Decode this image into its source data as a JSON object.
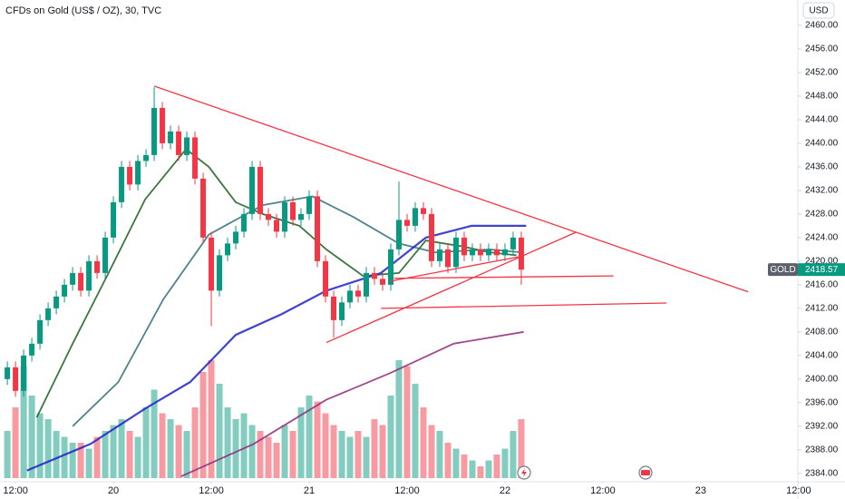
{
  "chart_data": {
    "type": "candlestick",
    "title": "CFDs on Gold (US$ / OZ), 30, TVC",
    "symbol": "GOLD",
    "currency": "USD",
    "up_color": "#089981",
    "down_color": "#f23645",
    "x": [
      0,
      1,
      2,
      3,
      4,
      5,
      6,
      7,
      8,
      9,
      10,
      11,
      12,
      13,
      14,
      15,
      16,
      17,
      18,
      19,
      20,
      21,
      22,
      23,
      24,
      25,
      26,
      27,
      28,
      29,
      30,
      31,
      32,
      33,
      34,
      35,
      36,
      37,
      38,
      39,
      40,
      41,
      42,
      43,
      44,
      45,
      46,
      47,
      48,
      49,
      50,
      51,
      52,
      53,
      54,
      55,
      56,
      57,
      58,
      59,
      60,
      61,
      62,
      63
    ],
    "open": [
      2400,
      2402,
      2398,
      2404,
      2406,
      2410,
      2412,
      2414,
      2416,
      2418,
      2415,
      2420,
      2418,
      2424,
      2430,
      2436,
      2433,
      2437,
      2438,
      2446,
      2440,
      2442,
      2438,
      2441,
      2434,
      2424,
      2415,
      2421,
      2423,
      2425,
      2428,
      2436,
      2428,
      2427,
      2425,
      2430,
      2427,
      2428,
      2431,
      2420,
      2414,
      2410,
      2413,
      2415,
      2414,
      2418,
      2417,
      2416,
      2422,
      2427,
      2426,
      2429,
      2428,
      2420,
      2422,
      2419,
      2424,
      2421,
      2422,
      2421,
      2422,
      2421,
      2422,
      2424
    ],
    "high": [
      2403,
      2403,
      2405,
      2407,
      2411,
      2413,
      2415,
      2417,
      2419,
      2419,
      2421,
      2421,
      2425,
      2431,
      2437,
      2437,
      2438,
      2439,
      2449.5,
      2447,
      2443,
      2443,
      2442,
      2442,
      2435,
      2425,
      2422,
      2424,
      2426,
      2429,
      2437,
      2437,
      2429,
      2428,
      2431,
      2431,
      2429,
      2432,
      2432,
      2421,
      2415,
      2414,
      2416,
      2416,
      2419,
      2419,
      2418,
      2423,
      2433.5,
      2428,
      2430,
      2430,
      2429,
      2423,
      2423,
      2425,
      2425,
      2423,
      2423,
      2423,
      2423,
      2423,
      2425,
      2425
    ],
    "low": [
      2399,
      2397,
      2397,
      2403,
      2405,
      2409,
      2411,
      2413,
      2415,
      2414,
      2414,
      2417,
      2417,
      2423,
      2429,
      2432,
      2432,
      2436,
      2437,
      2439,
      2439,
      2437,
      2437,
      2433,
      2423,
      2409,
      2414,
      2420,
      2422,
      2424,
      2427,
      2427,
      2426,
      2424,
      2424,
      2426,
      2426,
      2427,
      2419,
      2413,
      2407,
      2409,
      2412,
      2413,
      2413,
      2416,
      2415,
      2415,
      2421,
      2425,
      2425,
      2427,
      2419,
      2419,
      2418,
      2418,
      2420,
      2420,
      2420,
      2420,
      2420,
      2420,
      2421,
      2416
    ],
    "close": [
      2402,
      2398,
      2404,
      2406,
      2410,
      2412,
      2414,
      2416,
      2418,
      2415,
      2420,
      2418,
      2424,
      2430,
      2436,
      2433,
      2437,
      2438,
      2446,
      2440,
      2442,
      2438,
      2441,
      2434,
      2424,
      2415,
      2421,
      2423,
      2425,
      2428,
      2436,
      2428,
      2427,
      2425,
      2430,
      2427,
      2428,
      2431,
      2420,
      2414,
      2410,
      2413,
      2415,
      2414,
      2418,
      2417,
      2416,
      2422,
      2427,
      2426,
      2429,
      2428,
      2420,
      2422,
      2419,
      2424,
      2421,
      2422,
      2421,
      2422,
      2421,
      2422,
      2424,
      2418.57
    ],
    "volume": [
      40,
      60,
      95,
      70,
      55,
      50,
      40,
      35,
      30,
      30,
      25,
      35,
      40,
      45,
      50,
      40,
      35,
      60,
      75,
      55,
      50,
      45,
      40,
      60,
      90,
      100,
      80,
      60,
      50,
      55,
      45,
      40,
      35,
      30,
      45,
      40,
      60,
      70,
      65,
      55,
      45,
      40,
      35,
      40,
      35,
      50,
      45,
      70,
      100,
      95,
      80,
      60,
      45,
      40,
      30,
      25,
      20,
      15,
      10,
      15,
      20,
      25,
      40,
      50
    ],
    "series": [
      {
        "color": "#1b5e20",
        "x": [
          3.6,
          8,
          12.4,
          16.9,
          21.9,
          24.7,
          28,
          31.3,
          35.8,
          39.1,
          43.6,
          48,
          51.3,
          55.8,
          59.1,
          62.4
        ],
        "values": [
          2393.5,
          2406,
          2418,
          2430.5,
          2439,
          2436,
          2430,
          2428,
          2426,
          2422,
          2417.5,
          2418,
          2423.5,
          2422.5,
          2421.5,
          2421
        ]
      },
      {
        "color": "#2f6f78",
        "x": [
          8,
          13.6,
          19.1,
          24.7,
          31.3,
          37.4,
          42.4,
          48,
          52.4,
          59.1,
          63
        ],
        "values": [
          2392,
          2399.5,
          2413.5,
          2424.5,
          2429.5,
          2431,
          2427.5,
          2423,
          2421.5,
          2422,
          2421.5
        ]
      },
      {
        "color": "#1e22c8",
        "x": [
          2.4,
          10.2,
          16.9,
          22.4,
          28,
          33.6,
          39.1,
          45.8,
          51.3,
          56.9,
          63.6
        ],
        "values": [
          2384.5,
          2389,
          2395,
          2399.5,
          2407.5,
          2411,
          2415,
          2418,
          2424,
          2426,
          2426
        ]
      },
      {
        "color": "#8e2a78",
        "x": [
          21.3,
          30.2,
          39.1,
          46.9,
          54.7,
          63.3
        ],
        "values": [
          2383.5,
          2389,
          2396.5,
          2401,
          2406,
          2408
        ]
      }
    ],
    "drawings": [
      {
        "color": "#f23645",
        "x": [
          18,
          90.8
        ],
        "values": [
          2449.7,
          2414.8
        ]
      },
      {
        "color": "#f23645",
        "x": [
          39.1,
          69.7
        ],
        "values": [
          2406.2,
          2424.9
        ]
      },
      {
        "color": "#f23645",
        "x": [
          47.4,
          74.3
        ],
        "values": [
          2417.1,
          2417.5
        ]
      },
      {
        "color": "#f23645",
        "x": [
          45.8,
          80.8
        ],
        "values": [
          2412,
          2412.9
        ]
      },
      {
        "color": "#f23645",
        "x": [
          46.9,
          63.3
        ],
        "values": [
          2416.6,
          2420.9
        ]
      }
    ],
    "xlim": [
      -0.9,
      96.9
    ],
    "ylim": [
      2383.2,
      2464.3
    ],
    "xticks": [
      {
        "value": 1,
        "label": "12:00"
      },
      {
        "value": 13,
        "label": "20"
      },
      {
        "value": 25,
        "label": "12:00"
      },
      {
        "value": 37,
        "label": "21"
      },
      {
        "value": 49,
        "label": "12:00"
      },
      {
        "value": 61,
        "label": "22"
      },
      {
        "value": 73,
        "label": "12:00"
      },
      {
        "value": 85,
        "label": "23"
      },
      {
        "value": 97,
        "label": "12:00"
      }
    ],
    "yticks": [
      {
        "value": 2460,
        "label": "2460.00"
      },
      {
        "value": 2456,
        "label": "2456.00"
      },
      {
        "value": 2452,
        "label": "2452.00"
      },
      {
        "value": 2448,
        "label": "2448.00"
      },
      {
        "value": 2444,
        "label": "2444.00"
      },
      {
        "value": 2440,
        "label": "2440.00"
      },
      {
        "value": 2436,
        "label": "2436.00"
      },
      {
        "value": 2432,
        "label": "2432.00"
      },
      {
        "value": 2428,
        "label": "2428.00"
      },
      {
        "value": 2424,
        "label": "2424.00"
      },
      {
        "value": 2420,
        "label": "2420.00"
      },
      {
        "value": 2416,
        "label": "2416.00"
      },
      {
        "value": 2412,
        "label": "2412.00"
      },
      {
        "value": 2408,
        "label": "2408.00"
      },
      {
        "value": 2404,
        "label": "2404.00"
      },
      {
        "value": 2400,
        "label": "2400.00"
      },
      {
        "value": 2396,
        "label": "2396.00"
      },
      {
        "value": 2392,
        "label": "2392.00"
      },
      {
        "value": 2388,
        "label": "2388.00"
      },
      {
        "value": 2384,
        "label": "2384.00"
      }
    ],
    "grid": false
  }
}
